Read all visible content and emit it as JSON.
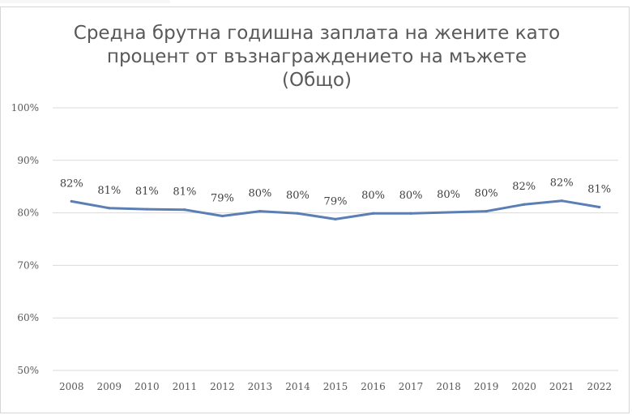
{
  "chart_data": {
    "type": "line",
    "title": "Средна брутна годишна заплата на жените като процент от възнаграждението на мъжете (Общо)",
    "title_lines": [
      "Средна брутна годишна заплата на жените като",
      "процент от възнаграждението на мъжете",
      "(Общо)"
    ],
    "xlabel": "",
    "ylabel": "",
    "x": [
      "2008",
      "2009",
      "2010",
      "2011",
      "2012",
      "2013",
      "2014",
      "2015",
      "2016",
      "2017",
      "2018",
      "2019",
      "2020",
      "2021",
      "2022"
    ],
    "series": [
      {
        "values": [
          82.2,
          80.9,
          80.7,
          80.6,
          79.4,
          80.3,
          79.9,
          78.8,
          79.9,
          79.9,
          80.1,
          80.3,
          81.6,
          82.3,
          81.1
        ],
        "labels": [
          "82%",
          "81%",
          "81%",
          "81%",
          "79%",
          "80%",
          "80%",
          "79%",
          "80%",
          "80%",
          "80%",
          "80%",
          "82%",
          "82%",
          "81%"
        ],
        "color": "#5b7fb5"
      }
    ],
    "ylim": [
      50,
      100
    ],
    "yticks": [
      50,
      60,
      70,
      80,
      90,
      100
    ],
    "ytick_labels": [
      "50%",
      "60%",
      "70%",
      "80%",
      "90%",
      "100%"
    ],
    "grid": true,
    "legend": "none",
    "colors": {
      "title": "#595959",
      "grid": "#d9d9d9",
      "axis_text": "#595959",
      "data_label": "#404040"
    }
  }
}
